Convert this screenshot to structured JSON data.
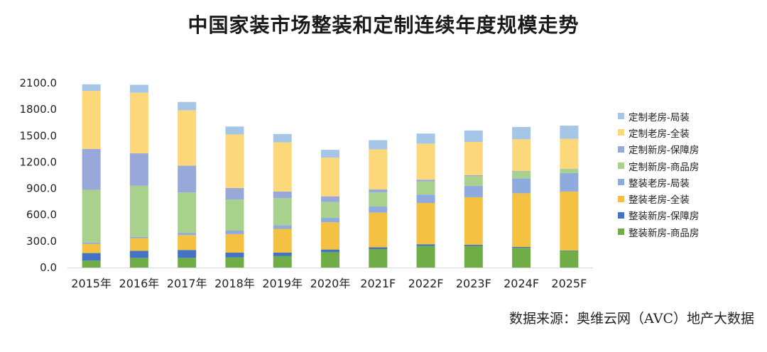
{
  "title": "中国家装市场整装和定制连续年度规模走势",
  "source": "数据来源：奥维云网（AVC）地产大数据",
  "chart_data": {
    "type": "bar",
    "stacked": true,
    "categories": [
      "2015年",
      "2016年",
      "2017年",
      "2018年",
      "2019年",
      "2020年",
      "2021F",
      "2022F",
      "2023F",
      "2024F",
      "2025F"
    ],
    "ylim": [
      0,
      2100
    ],
    "yticks": [
      "0.0",
      "300.0",
      "600.0",
      "900.0",
      "1200.0",
      "1500.0",
      "1800.0",
      "2100.0"
    ],
    "yticks_values": [
      0,
      300,
      600,
      900,
      1200,
      1500,
      1800,
      2100
    ],
    "grid": false,
    "legend_position": "right",
    "series": [
      {
        "name": "整装新房-商品房",
        "color": "#70ad47",
        "values": [
          80,
          110,
          110,
          115,
          130,
          175,
          210,
          245,
          245,
          225,
          190
        ]
      },
      {
        "name": "整装新房-保障房",
        "color": "#4472c4",
        "values": [
          85,
          80,
          90,
          55,
          40,
          30,
          20,
          20,
          15,
          10,
          5
        ]
      },
      {
        "name": "整装老房-全装",
        "color": "#f4c142",
        "values": [
          105,
          145,
          170,
          210,
          270,
          310,
          395,
          470,
          540,
          610,
          670
        ]
      },
      {
        "name": "整装老房-局装",
        "color": "#8faadc",
        "values": [
          15,
          15,
          25,
          40,
          40,
          50,
          70,
          95,
          130,
          170,
          210
        ]
      },
      {
        "name": "定制新房-商品房",
        "color": "#a9d18e",
        "values": [
          600,
          580,
          460,
          355,
          310,
          180,
          160,
          150,
          110,
          80,
          45
        ]
      },
      {
        "name": "定制新房-保障房",
        "color": "#98a9d9",
        "values": [
          465,
          370,
          305,
          130,
          75,
          65,
          35,
          20,
          10,
          5,
          5
        ]
      },
      {
        "name": "定制老房-全装",
        "color": "#fdd87a",
        "values": [
          660,
          690,
          630,
          610,
          560,
          440,
          455,
          410,
          380,
          360,
          340
        ]
      },
      {
        "name": "定制老房-局装",
        "color": "#a6c6e8",
        "values": [
          75,
          90,
          95,
          90,
          95,
          90,
          105,
          115,
          130,
          140,
          150
        ]
      }
    ]
  },
  "legend_order": [
    7,
    6,
    5,
    4,
    3,
    2,
    1,
    0
  ]
}
